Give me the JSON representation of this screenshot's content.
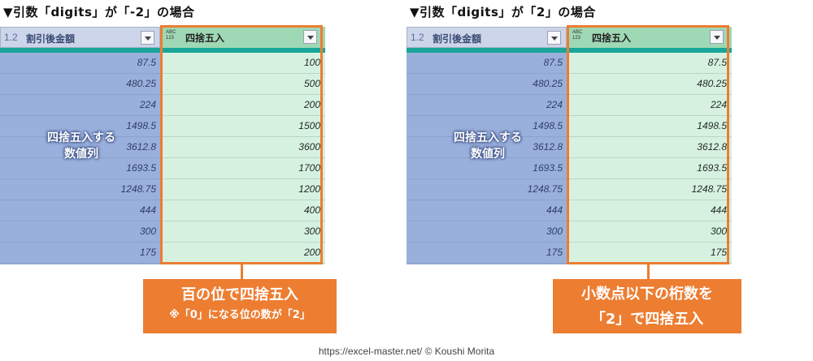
{
  "left": {
    "title": "▼引数「digits」が「-2」の場合",
    "colA_type": "1.2",
    "colA_name": "割引後金額",
    "colB_type_top": "ABC",
    "colB_type_bottom": "123",
    "colB_name": "四捨五入",
    "colA_values": [
      "87.5",
      "480.25",
      "224",
      "1498.5",
      "3612.8",
      "1693.5",
      "1248.75",
      "444",
      "300",
      "175"
    ],
    "colB_values": [
      "100",
      "500",
      "200",
      "1500",
      "3600",
      "1700",
      "1200",
      "400",
      "300",
      "200"
    ],
    "overlay_line1": "四捨五入する",
    "overlay_line2": "数値列",
    "callout_line1": "百の位で四捨五入",
    "callout_line2": "※「0」になる位の数が「2」"
  },
  "right": {
    "title": "▼引数「digits」が「2」の場合",
    "colA_type": "1.2",
    "colA_name": "割引後金額",
    "colB_type_top": "ABC",
    "colB_type_bottom": "123",
    "colB_name": "四捨五入",
    "colA_values": [
      "87.5",
      "480.25",
      "224",
      "1498.5",
      "3612.8",
      "1693.5",
      "1248.75",
      "444",
      "300",
      "175"
    ],
    "colB_values": [
      "87.5",
      "480.25",
      "224",
      "1498.5",
      "3612.8",
      "1693.5",
      "1248.75",
      "444",
      "300",
      "175"
    ],
    "overlay_line1": "四捨五入する",
    "overlay_line2": "数値列",
    "callout_line1": "小数点以下の桁数を",
    "callout_line2": "「2」で四捨五入"
  },
  "credit": "https://excel-master.net/ © Koushi Morita",
  "colors": {
    "accent": "#ed7d31",
    "header_bar": "#1aa59a",
    "source_column": "#9ab0dc",
    "result_column": "#d7f1e1"
  }
}
